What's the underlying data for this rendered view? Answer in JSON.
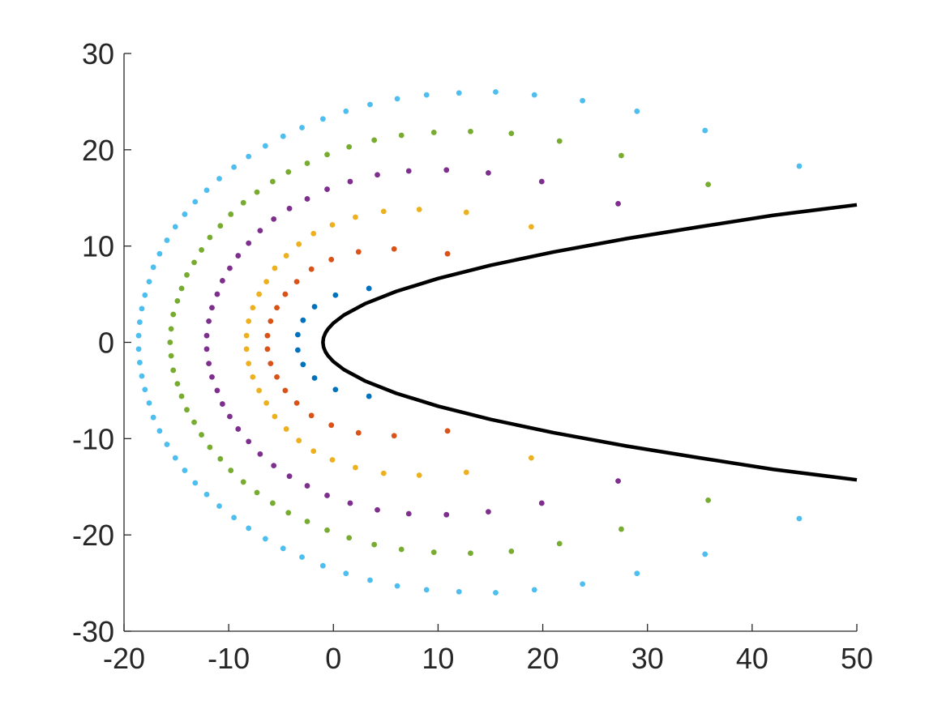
{
  "chart_data": {
    "type": "scatter",
    "title": "",
    "xlabel": "",
    "ylabel": "",
    "xlim": [
      -20,
      50
    ],
    "ylim": [
      -30,
      30
    ],
    "grid": false,
    "box": false,
    "x_ticks": [
      -20,
      -10,
      0,
      10,
      20,
      30,
      40,
      50
    ],
    "y_ticks": [
      -30,
      -20,
      -10,
      0,
      10,
      20,
      30
    ],
    "x_tick_labels": [
      "-20",
      "-10",
      "0",
      "10",
      "20",
      "30",
      "40",
      "50"
    ],
    "y_tick_labels": [
      "-30",
      "-20",
      "-10",
      "0",
      "10",
      "20",
      "30"
    ],
    "curve": {
      "type": "line",
      "color": "#000000",
      "description": "parabola x = y^2/4 - 1, plotted for x from -1 to 50",
      "points": [
        [
          50,
          -14.28
        ],
        [
          42,
          -13.19
        ],
        [
          35,
          -12.0
        ],
        [
          28,
          -10.77
        ],
        [
          21,
          -9.38
        ],
        [
          15,
          -8.0
        ],
        [
          10,
          -6.63
        ],
        [
          6,
          -5.29
        ],
        [
          3,
          -4.0
        ],
        [
          1,
          -2.83
        ],
        [
          0,
          -2.0
        ],
        [
          -0.5,
          -1.41
        ],
        [
          -0.75,
          -1.0
        ],
        [
          -0.94,
          -0.5
        ],
        [
          -1,
          0
        ],
        [
          -0.94,
          0.5
        ],
        [
          -0.75,
          1.0
        ],
        [
          -0.5,
          1.41
        ],
        [
          0,
          2.0
        ],
        [
          1,
          2.83
        ],
        [
          3,
          4.0
        ],
        [
          6,
          5.29
        ],
        [
          10,
          6.63
        ],
        [
          15,
          8.0
        ],
        [
          21,
          9.38
        ],
        [
          28,
          10.77
        ],
        [
          35,
          12.0
        ],
        [
          42,
          13.19
        ],
        [
          50,
          14.28
        ]
      ]
    },
    "series": [
      {
        "color": "#0072BD",
        "points": [
          [
            3.4,
            5.6
          ],
          [
            0.2,
            4.9
          ],
          [
            -1.8,
            3.7
          ],
          [
            -2.9,
            2.3
          ],
          [
            -3.4,
            0.8
          ],
          [
            -3.4,
            -0.8
          ],
          [
            -2.9,
            -2.3
          ],
          [
            -1.8,
            -3.7
          ],
          [
            0.2,
            -4.9
          ],
          [
            3.4,
            -5.6
          ]
        ]
      },
      {
        "color": "#D95319",
        "points": [
          [
            10.9,
            9.2
          ],
          [
            5.8,
            9.7
          ],
          [
            2.4,
            9.4
          ],
          [
            -0.2,
            8.6
          ],
          [
            -2.1,
            7.6
          ],
          [
            -3.5,
            6.3
          ],
          [
            -4.6,
            5.0
          ],
          [
            -5.4,
            3.6
          ],
          [
            -6.0,
            2.2
          ],
          [
            -6.3,
            0.7
          ],
          [
            -6.3,
            -0.7
          ],
          [
            -6.0,
            -2.2
          ],
          [
            -5.4,
            -3.6
          ],
          [
            -4.6,
            -5.0
          ],
          [
            -3.5,
            -6.3
          ],
          [
            -2.1,
            -7.6
          ],
          [
            -0.2,
            -8.6
          ],
          [
            2.4,
            -9.4
          ],
          [
            5.8,
            -9.7
          ],
          [
            10.9,
            -9.2
          ]
        ]
      },
      {
        "color": "#EDB120",
        "points": [
          [
            18.9,
            12.0
          ],
          [
            12.7,
            13.5
          ],
          [
            8.2,
            13.8
          ],
          [
            4.8,
            13.6
          ],
          [
            2.1,
            13.0
          ],
          [
            -0.1,
            12.2
          ],
          [
            -1.9,
            11.3
          ],
          [
            -3.3,
            10.2
          ],
          [
            -4.5,
            9.0
          ],
          [
            -5.6,
            7.7
          ],
          [
            -6.4,
            6.3
          ],
          [
            -7.1,
            5.0
          ],
          [
            -7.7,
            3.6
          ],
          [
            -8.1,
            2.2
          ],
          [
            -8.3,
            0.7
          ],
          [
            -8.3,
            -0.7
          ],
          [
            -8.1,
            -2.2
          ],
          [
            -7.7,
            -3.6
          ],
          [
            -7.1,
            -5.0
          ],
          [
            -6.4,
            -6.3
          ],
          [
            -5.6,
            -7.7
          ],
          [
            -4.5,
            -9.0
          ],
          [
            -3.3,
            -10.2
          ],
          [
            -1.9,
            -11.3
          ],
          [
            -0.1,
            -12.2
          ],
          [
            2.1,
            -13.0
          ],
          [
            4.8,
            -13.6
          ],
          [
            8.2,
            -13.8
          ],
          [
            12.7,
            -13.5
          ],
          [
            18.9,
            -12.0
          ]
        ]
      },
      {
        "color": "#7E2F8E",
        "points": [
          [
            27.2,
            14.4
          ],
          [
            19.9,
            16.7
          ],
          [
            14.8,
            17.6
          ],
          [
            10.8,
            17.9
          ],
          [
            7.2,
            17.8
          ],
          [
            4.2,
            17.4
          ],
          [
            1.6,
            16.7
          ],
          [
            -0.6,
            15.9
          ],
          [
            -2.5,
            14.9
          ],
          [
            -4.2,
            13.9
          ],
          [
            -5.7,
            12.8
          ],
          [
            -7.0,
            11.6
          ],
          [
            -8.1,
            10.3
          ],
          [
            -9.1,
            9.0
          ],
          [
            -9.9,
            7.7
          ],
          [
            -10.6,
            6.4
          ],
          [
            -11.1,
            5.0
          ],
          [
            -11.6,
            3.6
          ],
          [
            -11.9,
            2.2
          ],
          [
            -12.1,
            0.7
          ],
          [
            -12.1,
            -0.7
          ],
          [
            -11.9,
            -2.2
          ],
          [
            -11.6,
            -3.6
          ],
          [
            -11.1,
            -5.0
          ],
          [
            -10.6,
            -6.4
          ],
          [
            -9.9,
            -7.7
          ],
          [
            -9.1,
            -9.0
          ],
          [
            -8.1,
            -10.3
          ],
          [
            -7.0,
            -11.6
          ],
          [
            -5.7,
            -12.8
          ],
          [
            -4.2,
            -13.9
          ],
          [
            -2.5,
            -14.9
          ],
          [
            -0.6,
            -15.9
          ],
          [
            1.6,
            -16.7
          ],
          [
            4.2,
            -17.4
          ],
          [
            7.2,
            -17.8
          ],
          [
            10.8,
            -17.9
          ],
          [
            14.8,
            -17.6
          ],
          [
            19.9,
            -16.7
          ],
          [
            27.2,
            -14.4
          ]
        ]
      },
      {
        "color": "#77AC30",
        "points": [
          [
            35.8,
            16.4
          ],
          [
            27.5,
            19.4
          ],
          [
            21.6,
            20.9
          ],
          [
            17.0,
            21.7
          ],
          [
            13.1,
            21.9
          ],
          [
            9.6,
            21.8
          ],
          [
            6.5,
            21.5
          ],
          [
            3.9,
            21.0
          ],
          [
            1.5,
            20.3
          ],
          [
            -0.6,
            19.5
          ],
          [
            -2.5,
            18.6
          ],
          [
            -4.3,
            17.7
          ],
          [
            -5.8,
            16.7
          ],
          [
            -7.3,
            15.6
          ],
          [
            -8.6,
            14.5
          ],
          [
            -9.8,
            13.3
          ],
          [
            -10.8,
            12.1
          ],
          [
            -11.8,
            10.9
          ],
          [
            -12.6,
            9.6
          ],
          [
            -13.3,
            8.3
          ],
          [
            -14.0,
            7.0
          ],
          [
            -14.5,
            5.6
          ],
          [
            -14.9,
            4.3
          ],
          [
            -15.3,
            2.9
          ],
          [
            -15.5,
            1.4
          ],
          [
            -15.6,
            0.0
          ],
          [
            -15.5,
            -1.4
          ],
          [
            -15.3,
            -2.9
          ],
          [
            -14.9,
            -4.3
          ],
          [
            -14.5,
            -5.6
          ],
          [
            -14.0,
            -7.0
          ],
          [
            -13.3,
            -8.3
          ],
          [
            -12.6,
            -9.6
          ],
          [
            -11.8,
            -10.9
          ],
          [
            -10.8,
            -12.1
          ],
          [
            -9.8,
            -13.3
          ],
          [
            -8.6,
            -14.5
          ],
          [
            -7.3,
            -15.6
          ],
          [
            -5.8,
            -16.7
          ],
          [
            -4.3,
            -17.7
          ],
          [
            -2.5,
            -18.6
          ],
          [
            -0.6,
            -19.5
          ],
          [
            1.5,
            -20.3
          ],
          [
            3.9,
            -21.0
          ],
          [
            6.5,
            -21.5
          ],
          [
            9.6,
            -21.8
          ],
          [
            13.1,
            -21.9
          ],
          [
            17.0,
            -21.7
          ],
          [
            21.6,
            -20.9
          ],
          [
            27.5,
            -19.4
          ],
          [
            35.8,
            -16.4
          ]
        ]
      },
      {
        "color": "#4DBEEE",
        "points": [
          [
            44.5,
            18.3
          ],
          [
            35.5,
            22.0
          ],
          [
            29.0,
            24.0
          ],
          [
            23.8,
            25.1
          ],
          [
            19.2,
            25.7
          ],
          [
            15.5,
            26.0
          ],
          [
            12.0,
            25.9
          ],
          [
            8.9,
            25.7
          ],
          [
            6.1,
            25.3
          ],
          [
            3.5,
            24.7
          ],
          [
            1.2,
            24.0
          ],
          [
            -1.0,
            23.2
          ],
          [
            -3.0,
            22.3
          ],
          [
            -4.8,
            21.4
          ],
          [
            -6.5,
            20.4
          ],
          [
            -8.1,
            19.3
          ],
          [
            -9.5,
            18.2
          ],
          [
            -10.9,
            17.0
          ],
          [
            -12.1,
            15.8
          ],
          [
            -13.2,
            14.6
          ],
          [
            -14.2,
            13.3
          ],
          [
            -15.1,
            12.0
          ],
          [
            -15.9,
            10.6
          ],
          [
            -16.6,
            9.2
          ],
          [
            -17.2,
            7.8
          ],
          [
            -17.6,
            6.3
          ],
          [
            -18.0,
            4.9
          ],
          [
            -18.3,
            3.5
          ],
          [
            -18.5,
            2.1
          ],
          [
            -18.6,
            0.7
          ],
          [
            -18.6,
            -0.7
          ],
          [
            -18.5,
            -2.1
          ],
          [
            -18.3,
            -3.5
          ],
          [
            -18.0,
            -4.9
          ],
          [
            -17.6,
            -6.3
          ],
          [
            -17.2,
            -7.8
          ],
          [
            -16.6,
            -9.2
          ],
          [
            -15.9,
            -10.6
          ],
          [
            -15.1,
            -12.0
          ],
          [
            -14.2,
            -13.3
          ],
          [
            -13.2,
            -14.6
          ],
          [
            -12.1,
            -15.8
          ],
          [
            -10.9,
            -17.0
          ],
          [
            -9.5,
            -18.2
          ],
          [
            -8.1,
            -19.3
          ],
          [
            -6.5,
            -20.4
          ],
          [
            -4.8,
            -21.4
          ],
          [
            -3.0,
            -22.3
          ],
          [
            -1.0,
            -23.2
          ],
          [
            1.2,
            -24.0
          ],
          [
            3.5,
            -24.7
          ],
          [
            6.1,
            -25.3
          ],
          [
            8.9,
            -25.7
          ],
          [
            12.0,
            -25.9
          ],
          [
            15.5,
            -26.0
          ],
          [
            19.2,
            -25.7
          ],
          [
            23.8,
            -25.1
          ],
          [
            29.0,
            -24.0
          ],
          [
            35.5,
            -22.0
          ],
          [
            44.5,
            -18.3
          ]
        ]
      }
    ]
  }
}
